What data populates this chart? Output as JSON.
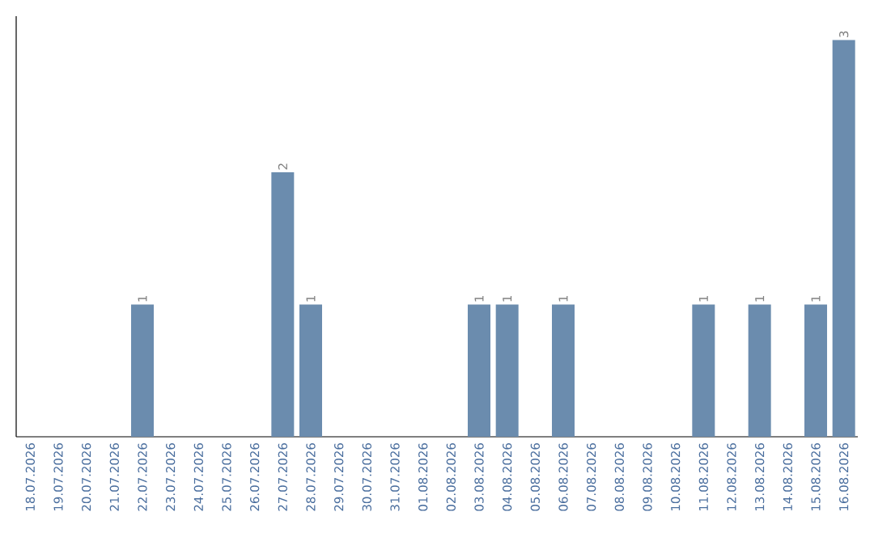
{
  "chart_data": {
    "type": "bar",
    "categories": [
      "18.07.2026",
      "19.07.2026",
      "20.07.2026",
      "21.07.2026",
      "22.07.2026",
      "23.07.2026",
      "24.07.2026",
      "25.07.2026",
      "26.07.2026",
      "27.07.2026",
      "28.07.2026",
      "29.07.2026",
      "30.07.2026",
      "31.07.2026",
      "01.08.2026",
      "02.08.2026",
      "03.08.2026",
      "04.08.2026",
      "05.08.2026",
      "06.08.2026",
      "07.08.2026",
      "08.08.2026",
      "09.08.2026",
      "10.08.2026",
      "11.08.2026",
      "12.08.2026",
      "13.08.2026",
      "14.08.2026",
      "15.08.2026",
      "16.08.2026"
    ],
    "values": [
      0,
      0,
      0,
      0,
      1,
      0,
      0,
      0,
      0,
      2,
      1,
      0,
      0,
      0,
      0,
      0,
      1,
      1,
      0,
      1,
      0,
      0,
      0,
      0,
      1,
      0,
      1,
      0,
      1,
      3
    ],
    "value_labels": [
      null,
      null,
      null,
      null,
      "1",
      null,
      null,
      null,
      null,
      "2",
      "1",
      null,
      null,
      null,
      null,
      null,
      "1",
      "1",
      null,
      "1",
      null,
      null,
      null,
      null,
      "1",
      null,
      "1",
      null,
      "1",
      "3"
    ],
    "color": "#6b8cae",
    "tick_labels": "x"
  }
}
